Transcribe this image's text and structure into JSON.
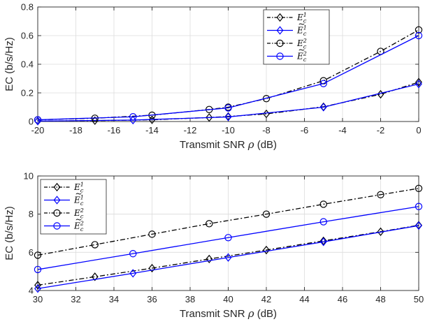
{
  "chart_data": [
    {
      "type": "line",
      "xlabel": "Transmit SNR",
      "xlabel_symbol": "ρ",
      "xlabel_unit": "(dB)",
      "ylabel": "EC (b/s/Hz)",
      "xlim": [
        -20,
        0
      ],
      "ylim": [
        0,
        0.8
      ],
      "xticks": [
        -20,
        -18,
        -16,
        -14,
        -12,
        -10,
        -8,
        -6,
        -4,
        -2,
        0
      ],
      "yticks": [
        0,
        0.2,
        0.4,
        0.6,
        0.8
      ],
      "grid": true,
      "legend_position": "top-right",
      "series": [
        {
          "name": "E_c^1",
          "legend": {
            "base": "E",
            "tilde": false,
            "sub": "c",
            "sup": "1"
          },
          "color": "#000000",
          "linestyle": "dashdot",
          "marker": "diamond",
          "x": [
            -20,
            -17,
            -14,
            -11,
            -10,
            -8,
            -5,
            -2,
            0
          ],
          "y": [
            0.003,
            0.006,
            0.012,
            0.028,
            0.035,
            0.053,
            0.103,
            0.19,
            0.275
          ]
        },
        {
          "name": "Ẽ_c^1",
          "legend": {
            "base": "E",
            "tilde": true,
            "sub": "c",
            "sup": "1"
          },
          "color": "#0000FF",
          "linestyle": "solid",
          "marker": "diamond",
          "x": [
            -20,
            -15,
            -10,
            -5,
            0
          ],
          "y": [
            0.003,
            0.01,
            0.032,
            0.1,
            0.262
          ]
        },
        {
          "name": "E_c^2",
          "legend": {
            "base": "E",
            "tilde": false,
            "sub": "c",
            "sup": "2"
          },
          "color": "#000000",
          "linestyle": "dashdot",
          "marker": "circle",
          "x": [
            -20,
            -17,
            -14,
            -11,
            -10,
            -8,
            -5,
            -2,
            0
          ],
          "y": [
            0.012,
            0.023,
            0.044,
            0.084,
            0.1,
            0.16,
            0.285,
            0.49,
            0.64
          ]
        },
        {
          "name": "Ẽ_c^2",
          "legend": {
            "base": "E",
            "tilde": true,
            "sub": "c",
            "sup": "2"
          },
          "color": "#0000FF",
          "linestyle": "solid",
          "marker": "circle",
          "x": [
            -20,
            -15,
            -10,
            -5,
            0
          ],
          "y": [
            0.012,
            0.033,
            0.095,
            0.265,
            0.6
          ]
        }
      ]
    },
    {
      "type": "line",
      "xlabel": "Transmit SNR",
      "xlabel_symbol": "ρ",
      "xlabel_unit": "(dB)",
      "ylabel": "EC (b/s/Hz)",
      "xlim": [
        30,
        50
      ],
      "ylim": [
        4,
        10
      ],
      "xticks": [
        30,
        32,
        34,
        36,
        38,
        40,
        42,
        44,
        46,
        48,
        50
      ],
      "yticks": [
        4,
        6,
        8,
        10
      ],
      "grid": true,
      "legend_position": "top-left",
      "series": [
        {
          "name": "E_c^1",
          "legend": {
            "base": "E",
            "tilde": false,
            "sub": "c",
            "sup": "1"
          },
          "color": "#000000",
          "linestyle": "dashdot",
          "marker": "diamond",
          "x": [
            30,
            33,
            36,
            39,
            42,
            45,
            48,
            50
          ],
          "y": [
            4.28,
            4.72,
            5.17,
            5.65,
            6.12,
            6.6,
            7.08,
            7.42
          ]
        },
        {
          "name": "Ẽ_c^1",
          "legend": {
            "base": "E",
            "tilde": true,
            "sub": "c",
            "sup": "1"
          },
          "color": "#0000FF",
          "linestyle": "solid",
          "marker": "diamond",
          "x": [
            30,
            35,
            40,
            45,
            50
          ],
          "y": [
            4.1,
            4.9,
            5.73,
            6.55,
            7.4
          ]
        },
        {
          "name": "E_c^2",
          "legend": {
            "base": "E",
            "tilde": false,
            "sub": "c",
            "sup": "2"
          },
          "color": "#000000",
          "linestyle": "dashdot",
          "marker": "circle",
          "x": [
            30,
            33,
            36,
            39,
            42,
            45,
            48,
            50
          ],
          "y": [
            5.85,
            6.4,
            6.95,
            7.5,
            8.0,
            8.52,
            9.02,
            9.35
          ]
        },
        {
          "name": "Ẽ_c^2",
          "legend": {
            "base": "E",
            "tilde": true,
            "sub": "c",
            "sup": "2"
          },
          "color": "#0000FF",
          "linestyle": "solid",
          "marker": "circle",
          "x": [
            30,
            35,
            40,
            45,
            50
          ],
          "y": [
            5.1,
            5.93,
            6.77,
            7.6,
            8.4
          ]
        }
      ]
    }
  ]
}
